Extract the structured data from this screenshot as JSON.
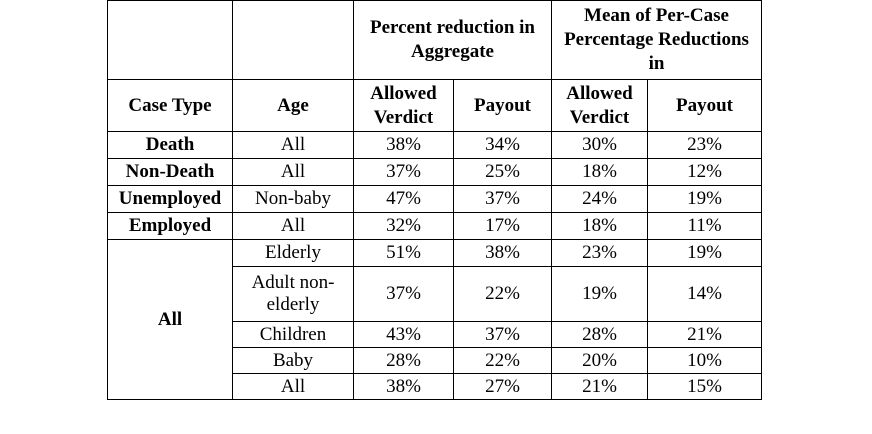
{
  "header": {
    "case_type": "Case Type",
    "age": "Age",
    "group_aggregate": "Percent reduction in Aggregate",
    "group_mean": "Mean of Per-Case Percentage Reductions in",
    "allowed_verdict": "Allowed Verdict",
    "payout": "Payout"
  },
  "rows": [
    {
      "case_type": "Death",
      "age": "All",
      "agg_allowed": "38%",
      "agg_payout": "34%",
      "mean_allowed": "30%",
      "mean_payout": "23%"
    },
    {
      "case_type": "Non-Death",
      "age": "All",
      "agg_allowed": "37%",
      "agg_payout": "25%",
      "mean_allowed": "18%",
      "mean_payout": "12%"
    },
    {
      "case_type": "Unemployed",
      "age": "Non-baby",
      "agg_allowed": "47%",
      "agg_payout": "37%",
      "mean_allowed": "24%",
      "mean_payout": "19%"
    },
    {
      "case_type": "Employed",
      "age": "All",
      "agg_allowed": "32%",
      "agg_payout": "17%",
      "mean_allowed": "18%",
      "mean_payout": "11%"
    },
    {
      "case_type": "All",
      "age": "Elderly",
      "agg_allowed": "51%",
      "agg_payout": "38%",
      "mean_allowed": "23%",
      "mean_payout": "19%"
    },
    {
      "case_type": "",
      "age": "Adult non-elderly",
      "agg_allowed": "37%",
      "agg_payout": "22%",
      "mean_allowed": "19%",
      "mean_payout": "14%"
    },
    {
      "case_type": "",
      "age": "Children",
      "agg_allowed": "43%",
      "agg_payout": "37%",
      "mean_allowed": "28%",
      "mean_payout": "21%"
    },
    {
      "case_type": "",
      "age": "Baby",
      "agg_allowed": "28%",
      "agg_payout": "22%",
      "mean_allowed": "20%",
      "mean_payout": "10%"
    },
    {
      "case_type": "",
      "age": "All",
      "agg_allowed": "38%",
      "agg_payout": "27%",
      "mean_allowed": "21%",
      "mean_payout": "15%"
    }
  ]
}
